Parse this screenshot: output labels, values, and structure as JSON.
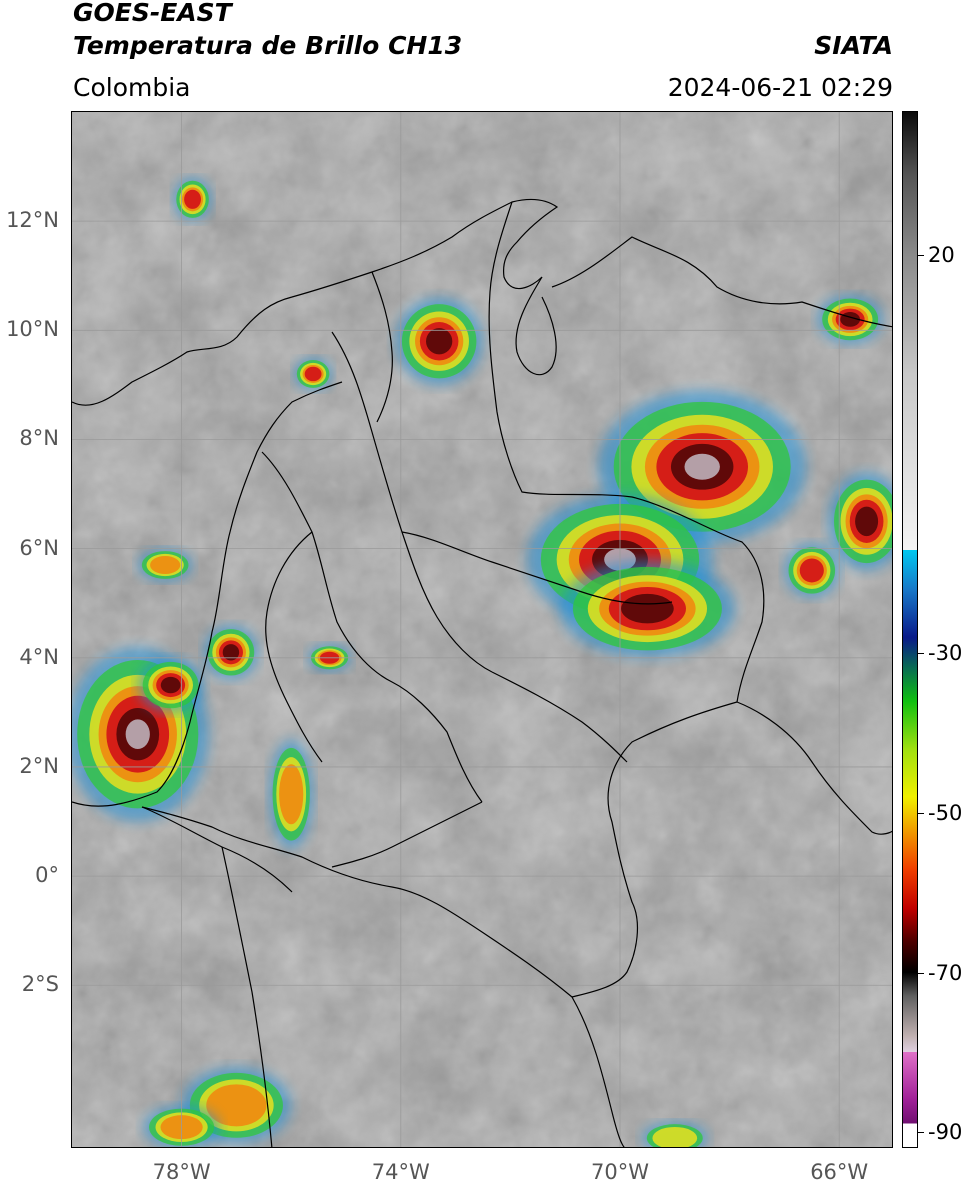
{
  "header": {
    "satellite": "GOES-EAST",
    "product": "Temperatura de Brillo CH13",
    "region": "Colombia",
    "agency": "SIATA",
    "datetime": "2024-06-21 02:29"
  },
  "map": {
    "lon_range": [
      -80,
      -65
    ],
    "lat_range": [
      -5,
      14
    ],
    "lon_ticks": [
      {
        "value": -78,
        "label": "78°W"
      },
      {
        "value": -74,
        "label": "74°W"
      },
      {
        "value": -70,
        "label": "70°W"
      },
      {
        "value": -66,
        "label": "66°W"
      }
    ],
    "lat_ticks": [
      {
        "value": 12,
        "label": "12°N"
      },
      {
        "value": 10,
        "label": "10°N"
      },
      {
        "value": 8,
        "label": "8°N"
      },
      {
        "value": 6,
        "label": "6°N"
      },
      {
        "value": 4,
        "label": "4°N"
      },
      {
        "value": 2,
        "label": "2°N"
      },
      {
        "value": 0,
        "label": "0°"
      },
      {
        "value": -2,
        "label": "2°S"
      }
    ],
    "storm_cells": [
      {
        "lon": -68.5,
        "lat": 7.5,
        "intensity": 1.0,
        "rx": 1.9,
        "ry": 1.4
      },
      {
        "lon": -70.0,
        "lat": 5.8,
        "intensity": 0.95,
        "rx": 1.7,
        "ry": 1.2
      },
      {
        "lon": -69.5,
        "lat": 4.9,
        "intensity": 0.8,
        "rx": 1.6,
        "ry": 0.9
      },
      {
        "lon": -65.5,
        "lat": 6.5,
        "intensity": 0.9,
        "rx": 0.7,
        "ry": 0.9
      },
      {
        "lon": -66.5,
        "lat": 5.6,
        "intensity": 0.75,
        "rx": 0.5,
        "ry": 0.5
      },
      {
        "lon": -73.3,
        "lat": 9.8,
        "intensity": 0.9,
        "rx": 0.8,
        "ry": 0.8
      },
      {
        "lon": -78.8,
        "lat": 2.6,
        "intensity": 1.0,
        "rx": 1.3,
        "ry": 1.6
      },
      {
        "lon": -78.2,
        "lat": 3.5,
        "intensity": 0.85,
        "rx": 0.6,
        "ry": 0.5
      },
      {
        "lon": -77.1,
        "lat": 4.1,
        "intensity": 0.8,
        "rx": 0.5,
        "ry": 0.5
      },
      {
        "lon": -75.3,
        "lat": 4.0,
        "intensity": 0.7,
        "rx": 0.4,
        "ry": 0.25
      },
      {
        "lon": -75.6,
        "lat": 9.2,
        "intensity": 0.7,
        "rx": 0.35,
        "ry": 0.3
      },
      {
        "lon": -77.8,
        "lat": 12.4,
        "intensity": 0.75,
        "rx": 0.35,
        "ry": 0.4
      },
      {
        "lon": -65.8,
        "lat": 10.2,
        "intensity": 0.8,
        "rx": 0.6,
        "ry": 0.45
      },
      {
        "lon": -77.0,
        "lat": -4.2,
        "intensity": 0.6,
        "rx": 1.0,
        "ry": 0.7
      },
      {
        "lon": -78.0,
        "lat": -4.6,
        "intensity": 0.5,
        "rx": 0.7,
        "ry": 0.4
      },
      {
        "lon": -69.0,
        "lat": -4.8,
        "intensity": 0.45,
        "rx": 0.6,
        "ry": 0.3
      },
      {
        "lon": -78.3,
        "lat": 5.7,
        "intensity": 0.55,
        "rx": 0.5,
        "ry": 0.3
      },
      {
        "lon": -76.0,
        "lat": 1.5,
        "intensity": 0.5,
        "rx": 0.4,
        "ry": 1.0
      }
    ]
  },
  "colorbar": {
    "min": -92,
    "max": 38,
    "ticks": [
      {
        "value": 20,
        "label": "20"
      },
      {
        "value": -30,
        "label": "-30"
      },
      {
        "value": -50,
        "label": "-50"
      },
      {
        "value": -70,
        "label": "-70"
      },
      {
        "value": -90,
        "label": "-90"
      }
    ]
  },
  "colors": {
    "background": "#ffffff",
    "frame": "#000000",
    "tick_label": "#555555",
    "grid": "#9a9a9a"
  }
}
